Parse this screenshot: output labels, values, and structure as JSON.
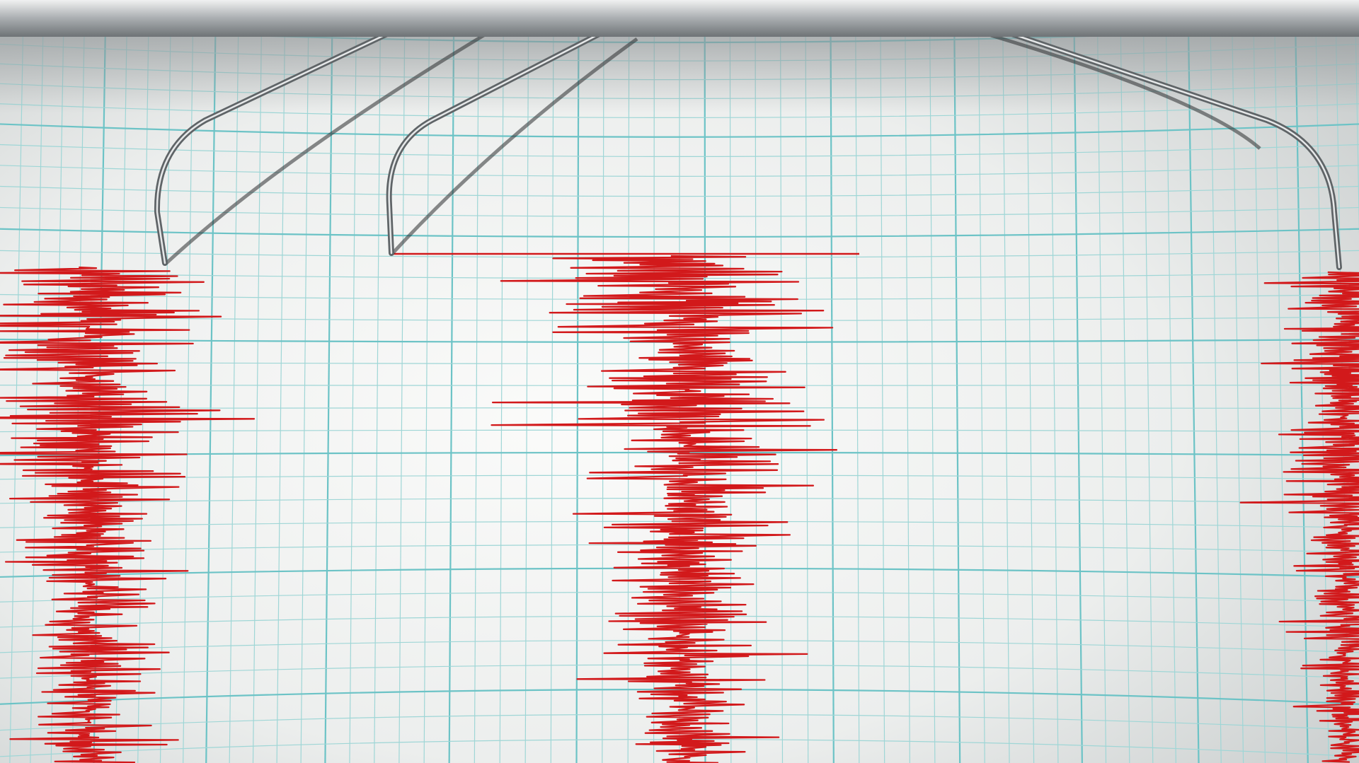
{
  "scene": {
    "colors": {
      "paper": "#f4f5f4",
      "paper_shade": "#c9cdcd",
      "grid_minor": "#9fd6d6",
      "grid_major": "#6cc3c6",
      "trace": "#d2191b",
      "needle": "#9a9ea2",
      "rail": "#b8bcbf"
    },
    "needles": 3,
    "traces": 3
  }
}
